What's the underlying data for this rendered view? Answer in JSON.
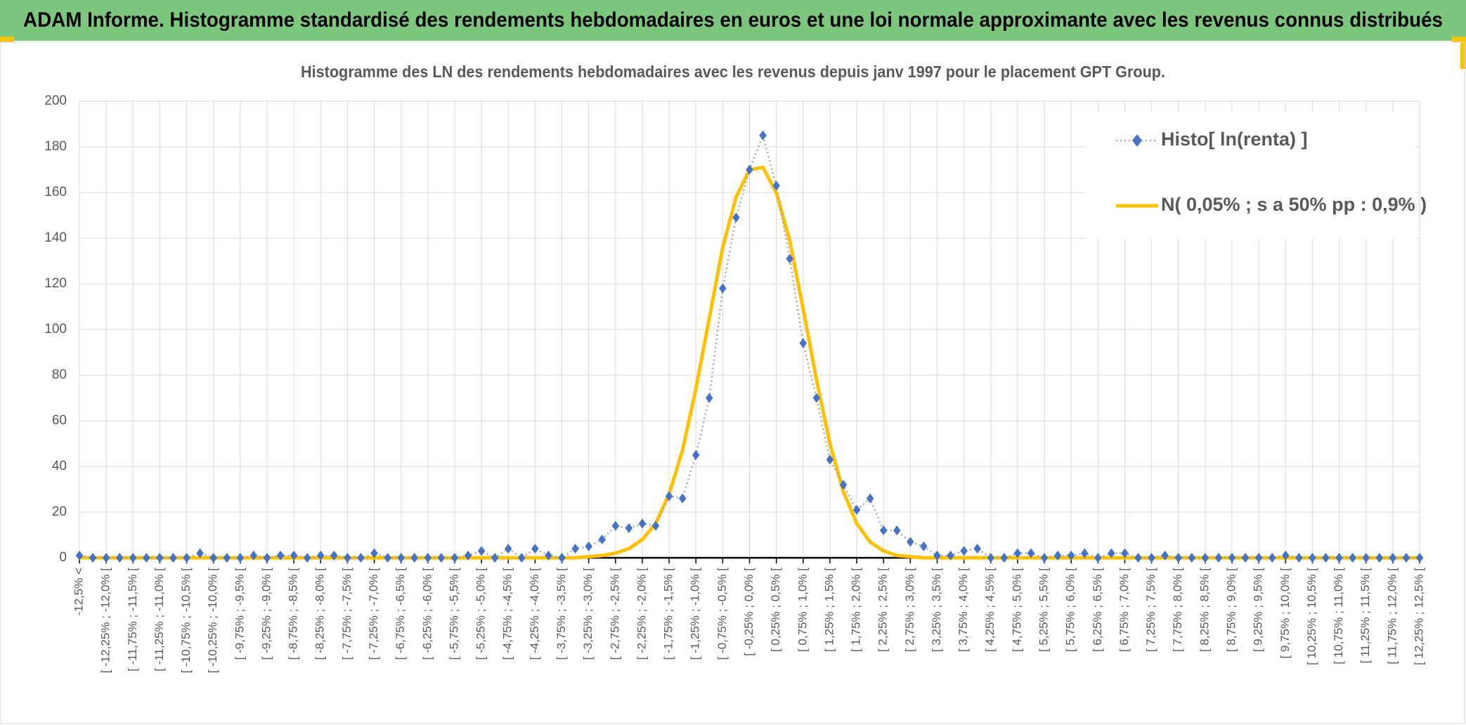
{
  "header": {
    "title": "ADAM Informe. Histogramme standardisé des rendements hebdomadaires en euros et une loi normale approximante avec les revenus connus distribués"
  },
  "chart_data": {
    "type": "line",
    "title": "Histogramme des LN des rendements hebdomadaires avec les revenus depuis janv 1997 pour le placement GPT Group.",
    "categories": [
      "-12,5% <",
      null,
      "[ -12,25% ; -12,0% [",
      null,
      "[ -11,75% ; -11,5% [",
      null,
      "[ -11,25% ; -11,0% [",
      null,
      "[ -10,75% ; -10,5% [",
      null,
      "[ -10,25% ; -10,0% [",
      null,
      "[ -9,75% ; -9,5% [",
      null,
      "[ -9,25% ; -9,0% [",
      null,
      "[ -8,75% ; -8,5% [",
      null,
      "[ -8,25% ; -8,0% [",
      null,
      "[ -7,75% ; -7,5% [",
      null,
      "[ -7,25% ; -7,0% [",
      null,
      "[ -6,75% ; -6,5% [",
      null,
      "[ -6,25% ; -6,0% [",
      null,
      "[ -5,75% ; -5,5% [",
      null,
      "[ -5,25% ; -5,0% [",
      null,
      "[ -4,75% ; -4,5% [",
      null,
      "[ -4,25% ; -4,0% [",
      null,
      "[ -3,75% ; -3,5% [",
      null,
      "[ -3,25% ; -3,0% [",
      null,
      "[ -2,75% ; -2,5% [",
      null,
      "[ -2,25% ; -2,0% [",
      null,
      "[ -1,75% ; -1,5% [",
      null,
      "[ -1,25% ; -1,0% [",
      null,
      "[ -0,75% ; -0,5% [",
      null,
      "[ -0,25% ; 0,0% [",
      null,
      "[ 0,25% ; 0,5% [",
      null,
      "[ 0,75% ; 1,0% [",
      null,
      "[ 1,25% ; 1,5% [",
      null,
      "[ 1,75% ; 2,0% [",
      null,
      "[ 2,25% ; 2,5% [",
      null,
      "[ 2,75% ; 3,0% [",
      null,
      "[ 3,25% ; 3,5% [",
      null,
      "[ 3,75% ; 4,0% [",
      null,
      "[ 4,25% ; 4,5% [",
      null,
      "[ 4,75% ; 5,0% [",
      null,
      "[ 5,25% ; 5,5% [",
      null,
      "[ 5,75% ; 6,0% [",
      null,
      "[ 6,25% ; 6,5% [",
      null,
      "[ 6,75% ; 7,0% [",
      null,
      "[ 7,25% ; 7,5% [",
      null,
      "[ 7,75% ; 8,0% [",
      null,
      "[ 8,25% ; 8,5% [",
      null,
      "[ 8,75% ; 9,0% [",
      null,
      "[ 9,25% ; 9,5% [",
      null,
      "[ 9,75% ; 10,0% [",
      null,
      "[ 10,25% ; 10,5% [",
      null,
      "[ 10,75% ; 11,0% [",
      null,
      "[ 11,25% ; 11,5% [",
      null,
      "[ 11,75% ; 12,0% [",
      null,
      "[ 12,25% ; 12,5% ["
    ],
    "series": [
      {
        "name": "Histo[ ln(renta) ]",
        "color": "#4472c4",
        "marker": "diamond",
        "values": [
          1,
          0,
          0,
          0,
          0,
          0,
          0,
          0,
          0,
          2,
          0,
          0,
          0,
          1,
          0,
          1,
          1,
          0,
          1,
          1,
          0,
          0,
          2,
          0,
          0,
          0,
          0,
          0,
          0,
          1,
          3,
          0,
          4,
          0,
          4,
          1,
          0,
          4,
          5,
          8,
          14,
          13,
          15,
          14,
          27,
          26,
          45,
          70,
          118,
          149,
          170,
          185,
          163,
          131,
          94,
          70,
          43,
          32,
          21,
          26,
          12,
          12,
          7,
          5,
          1,
          1,
          3,
          4,
          0,
          0,
          2,
          2,
          0,
          1,
          1,
          2,
          0,
          2,
          2,
          0,
          0,
          1,
          0,
          0,
          0,
          0,
          0,
          0,
          0,
          0,
          1,
          0,
          0,
          0,
          0,
          0,
          0,
          0,
          0,
          0,
          0
        ]
      },
      {
        "name": "N( 0,05% ; s a 50% pp : 0,9% )",
        "color": "#ffc000",
        "values": [
          0,
          0,
          0,
          0,
          0,
          0,
          0,
          0,
          0,
          0,
          0,
          0,
          0,
          0,
          0,
          0,
          0,
          0,
          0,
          0,
          0,
          0,
          0,
          0,
          0,
          0,
          0,
          0,
          0,
          0,
          0,
          0,
          0,
          0,
          0,
          0,
          0,
          0,
          0.5,
          1,
          2,
          4,
          8,
          15,
          28,
          47,
          74,
          105,
          136,
          158,
          170,
          171,
          160,
          139,
          109,
          78,
          50,
          29,
          15,
          7,
          3,
          1,
          0.5,
          0,
          0,
          0,
          0,
          0,
          0,
          0,
          0,
          0,
          0,
          0,
          0,
          0,
          0,
          0,
          0,
          0,
          0,
          0,
          0,
          0,
          0,
          0,
          0,
          0,
          0,
          0,
          0,
          0,
          0,
          0,
          0,
          0,
          0,
          0,
          0,
          0,
          0
        ]
      }
    ],
    "ylim": [
      0,
      200
    ],
    "yticks": [
      0,
      20,
      40,
      60,
      80,
      100,
      120,
      140,
      160,
      180,
      200
    ],
    "grid": true,
    "legend": "top-right"
  }
}
